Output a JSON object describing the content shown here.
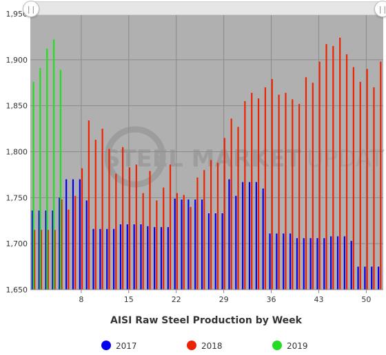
{
  "colors": {
    "plot_background": "#b0b0b0",
    "grid": "#8a8a8a",
    "series_2017": "#0000ee",
    "series_2018": "#ee2200",
    "series_2019": "#22dd22"
  },
  "watermark": {
    "text_bold": "STEEL MARKET",
    "text_light": "UPDATE"
  },
  "chart_data": {
    "type": "bar",
    "title": "AISI Raw Steel Production by Week",
    "xlabel": "AISI Raw Steel Production by Week",
    "ylabel": "",
    "xlim": [
      1,
      52
    ],
    "ylim": [
      1650,
      1950
    ],
    "x_ticks": [
      8,
      15,
      22,
      29,
      36,
      43,
      50
    ],
    "y_ticks": [
      1650,
      1700,
      1750,
      1800,
      1850,
      1900,
      1950
    ],
    "y_tick_labels": [
      "1,650",
      "1,700",
      "1,750",
      "1,800",
      "1,850",
      "1,900",
      "1,950"
    ],
    "legend_position": "bottom",
    "weeks": [
      1,
      2,
      3,
      4,
      5,
      6,
      7,
      8,
      9,
      10,
      11,
      12,
      13,
      14,
      15,
      16,
      17,
      18,
      19,
      20,
      21,
      22,
      23,
      24,
      25,
      26,
      27,
      28,
      29,
      30,
      31,
      32,
      33,
      34,
      35,
      36,
      37,
      38,
      39,
      40,
      41,
      42,
      43,
      44,
      45,
      46,
      47,
      48,
      49,
      50,
      51,
      52
    ],
    "series": [
      {
        "name": "2017",
        "color": "#0000ee",
        "values": [
          1736,
          1736,
          1736,
          1736,
          1750,
          1770,
          1770,
          1770,
          1747,
          1716,
          1716,
          1716,
          1716,
          1721,
          1721,
          1721,
          1721,
          1719,
          1718,
          1718,
          1718,
          1749,
          1748,
          1748,
          1748,
          1748,
          1733,
          1733,
          1733,
          1770,
          1752,
          1767,
          1767,
          1767,
          1760,
          1711,
          1711,
          1711,
          1711,
          1706,
          1706,
          1706,
          1706,
          1706,
          1708,
          1708,
          1708,
          1703,
          1675,
          1675,
          1675,
          1675
        ]
      },
      {
        "name": "2018",
        "color": "#ee2200",
        "values": [
          1715,
          1715,
          1715,
          1715,
          1748,
          1737,
          1752,
          1782,
          1834,
          1813,
          1825,
          1803,
          1776,
          1805,
          1783,
          1786,
          1755,
          1779,
          1747,
          1761,
          1786,
          1755,
          1753,
          1740,
          1772,
          1780,
          1791,
          1788,
          1815,
          1836,
          1827,
          1855,
          1864,
          1858,
          1870,
          1879,
          1862,
          1864,
          1857,
          1852,
          1881,
          1875,
          1898,
          1917,
          1915,
          1924,
          1906,
          1892,
          1876,
          1890,
          1870,
          1898
        ]
      },
      {
        "name": "2019",
        "color": "#22dd22",
        "values": [
          1876,
          1891,
          1912,
          1922,
          1889
        ]
      }
    ]
  }
}
